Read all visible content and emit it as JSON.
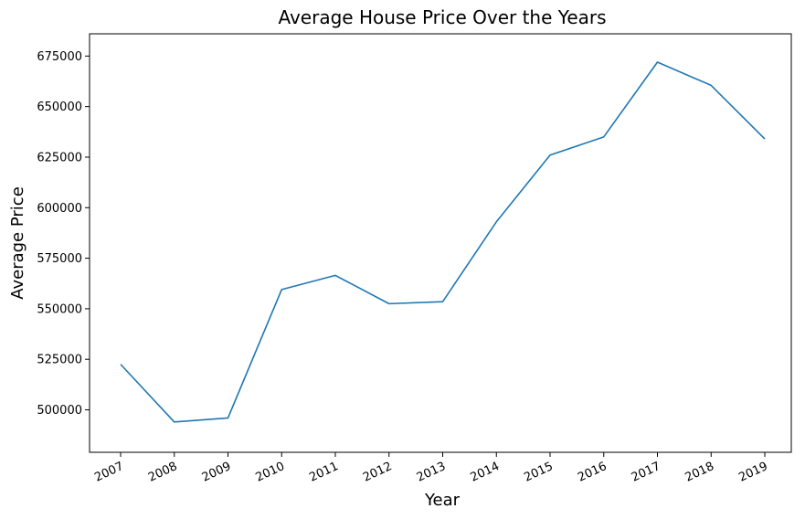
{
  "chart_data": {
    "type": "line",
    "title": "Average House Price Over the Years",
    "xlabel": "Year",
    "ylabel": "Average Price",
    "categories": [
      "2007",
      "2008",
      "2009",
      "2010",
      "2011",
      "2012",
      "2013",
      "2014",
      "2015",
      "2016",
      "2017",
      "2018",
      "2019"
    ],
    "series": [
      {
        "values": [
          522500,
          494000,
          496000,
          559500,
          566500,
          552500,
          553500,
          593000,
          626000,
          635000,
          672000,
          660500,
          634000
        ],
        "color": "#1f77b4"
      }
    ],
    "yticks": [
      500000,
      525000,
      550000,
      575000,
      600000,
      625000,
      650000,
      675000
    ],
    "ylim": [
      479000,
      686000
    ],
    "x_tick_rotation": 25,
    "grid": false,
    "legend": "none"
  }
}
